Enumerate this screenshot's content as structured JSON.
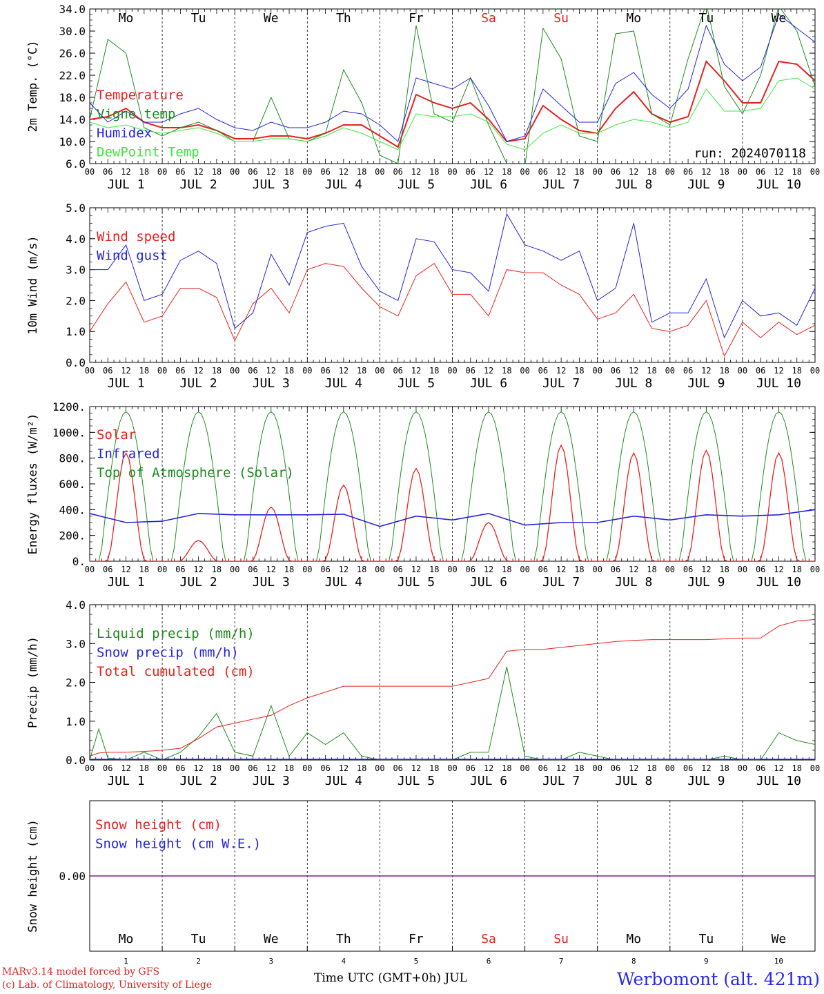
{
  "run_label": "run: 2024070118",
  "credits": {
    "line1": "MARv3.14 model forced by GFS",
    "line2": "(c) Lab. of Climatology, University of Liege"
  },
  "station": "Werbomont (alt. 421m)",
  "x_axis_title": "Time UTC (GMT+0h) JUL",
  "colors": {
    "red": "#e8201c",
    "green": "#1e8a1e",
    "blue": "#2222dd",
    "lightgreen": "#3ee83e",
    "purple": "#7a2090"
  },
  "chart_data": [
    {
      "type": "line",
      "ylabel": "2m Temp. (°C)",
      "ylim": [
        6,
        34
      ],
      "ytick_labels": [
        "6.0",
        "10.0",
        "14.0",
        "18.0",
        "22.0",
        "26.0",
        "30.0",
        "34.0"
      ],
      "day_labels": [
        "Mo",
        "Tu",
        "We",
        "Th",
        "Fr",
        "Sa",
        "Su",
        "Mo",
        "Tu",
        "We"
      ],
      "day_label_colors": [
        "#000",
        "#000",
        "#000",
        "#000",
        "#000",
        "#e8201c",
        "#e8201c",
        "#000",
        "#000",
        "#000"
      ],
      "x_hour_ticks": [
        "00",
        "06",
        "12",
        "18"
      ],
      "x_day_labels": [
        "JUL  1",
        "JUL  2",
        "JUL  3",
        "JUL  4",
        "JUL  5",
        "JUL  6",
        "JUL  7",
        "JUL  8",
        "JUL  9",
        "JUL 10"
      ],
      "legend": [
        {
          "label": "Temperature",
          "color": "#e8201c"
        },
        {
          "label": "Vigne temp",
          "color": "#1e8a1e"
        },
        {
          "label": "Humidex",
          "color": "#2222dd"
        },
        {
          "label": "DewPoint Temp",
          "color": "#3ee83e"
        }
      ],
      "x_hours": [
        0,
        6,
        12,
        18,
        24,
        30,
        36,
        42,
        48,
        54,
        60,
        66,
        72,
        78,
        84,
        90,
        96,
        102,
        108,
        114,
        120,
        126,
        132,
        138,
        144,
        150,
        156,
        162,
        168,
        174,
        180,
        186,
        192,
        198,
        204,
        210,
        216,
        222,
        228,
        234,
        240
      ],
      "series": [
        {
          "name": "Temperature",
          "color": "#e8201c",
          "width": 2,
          "values": [
            14.0,
            14.5,
            16.0,
            13.5,
            12.5,
            12.5,
            13.0,
            12.0,
            10.5,
            10.5,
            11.0,
            11.0,
            10.5,
            11.5,
            13.0,
            13.0,
            11.0,
            9.0,
            18.5,
            17.0,
            16.0,
            17.0,
            14.0,
            10.0,
            10.5,
            16.5,
            14.0,
            12.0,
            11.5,
            16.0,
            19.0,
            15.0,
            13.5,
            14.5,
            24.5,
            21.0,
            17.0,
            17.0,
            24.5,
            24.0,
            21.0
          ]
        },
        {
          "name": "Vigne temp",
          "color": "#1e8a1e",
          "width": 1,
          "values": [
            14.0,
            28.5,
            26.0,
            12.5,
            11.0,
            12.5,
            13.5,
            12.0,
            10.0,
            10.0,
            18.0,
            10.5,
            10.0,
            11.5,
            23.0,
            17.0,
            7.5,
            6.0,
            31.0,
            15.0,
            13.5,
            21.5,
            13.0,
            6.0,
            5.5,
            30.5,
            25.0,
            11.0,
            10.0,
            29.5,
            30.0,
            15.0,
            13.0,
            25.0,
            35.0,
            20.0,
            15.0,
            22.0,
            34.5,
            30.0,
            20.0
          ]
        },
        {
          "name": "Humidex",
          "color": "#2222dd",
          "width": 1,
          "values": [
            17.0,
            13.5,
            15.5,
            13.5,
            13.5,
            15.0,
            16.0,
            14.0,
            12.5,
            12.0,
            13.5,
            12.5,
            12.5,
            13.5,
            15.5,
            15.0,
            13.0,
            10.0,
            21.5,
            20.5,
            19.5,
            21.5,
            16.5,
            10.0,
            11.0,
            19.5,
            16.5,
            13.5,
            13.5,
            20.5,
            22.5,
            18.5,
            16.0,
            19.5,
            31.0,
            24.0,
            21.0,
            23.5,
            33.0,
            30.5,
            28.0
          ]
        },
        {
          "name": "DewPoint Temp",
          "color": "#3ee83e",
          "width": 1,
          "values": [
            13.5,
            12.5,
            13.0,
            12.0,
            11.5,
            12.0,
            12.5,
            11.5,
            10.0,
            10.0,
            10.5,
            10.5,
            10.0,
            11.0,
            12.5,
            11.5,
            10.0,
            8.5,
            15.0,
            14.5,
            14.5,
            15.0,
            13.5,
            9.5,
            8.5,
            11.5,
            13.0,
            11.5,
            11.5,
            13.0,
            14.0,
            13.5,
            12.5,
            13.5,
            19.5,
            15.5,
            15.5,
            16.0,
            21.0,
            21.5,
            19.5
          ]
        }
      ],
      "extra_text": "run_label"
    },
    {
      "type": "line",
      "ylabel": "10m Wind (m/s)",
      "ylim": [
        0,
        5
      ],
      "ytick_labels": [
        "0.0",
        "1.0",
        "2.0",
        "3.0",
        "4.0",
        "5.0"
      ],
      "x_hour_ticks": [
        "00",
        "06",
        "12",
        "18"
      ],
      "x_day_labels": [
        "JUL  1",
        "JUL  2",
        "JUL  3",
        "JUL  4",
        "JUL  5",
        "JUL  6",
        "JUL  7",
        "JUL  8",
        "JUL  9",
        "JUL 10"
      ],
      "legend": [
        {
          "label": "Wind speed",
          "color": "#e8201c"
        },
        {
          "label": "Wind gust",
          "color": "#2222dd"
        }
      ],
      "x_hours": [
        0,
        6,
        12,
        18,
        24,
        30,
        36,
        42,
        48,
        54,
        60,
        66,
        72,
        78,
        84,
        90,
        96,
        102,
        108,
        114,
        120,
        126,
        132,
        138,
        144,
        150,
        156,
        162,
        168,
        174,
        180,
        186,
        192,
        198,
        204,
        210,
        216,
        222,
        228,
        234,
        240
      ],
      "series": [
        {
          "name": "Wind speed",
          "color": "#e8201c",
          "width": 1,
          "values": [
            1.0,
            1.9,
            2.6,
            1.3,
            1.5,
            2.4,
            2.4,
            2.1,
            0.7,
            1.9,
            2.4,
            1.6,
            3.0,
            3.2,
            3.1,
            2.4,
            1.8,
            1.5,
            2.8,
            3.2,
            2.2,
            2.2,
            1.5,
            3.0,
            2.9,
            2.9,
            2.5,
            2.2,
            1.4,
            1.6,
            2.2,
            1.1,
            1.0,
            1.2,
            2.0,
            0.2,
            1.3,
            0.8,
            1.3,
            0.9,
            1.2
          ]
        },
        {
          "name": "Wind gust",
          "color": "#2222dd",
          "width": 1,
          "values": [
            3.0,
            3.0,
            3.8,
            2.0,
            2.2,
            3.3,
            3.6,
            3.2,
            1.1,
            1.6,
            3.5,
            2.5,
            4.2,
            4.4,
            4.5,
            3.1,
            2.3,
            2.0,
            4.0,
            3.9,
            3.0,
            2.9,
            2.3,
            4.8,
            3.8,
            3.6,
            3.3,
            3.6,
            2.0,
            2.4,
            4.5,
            1.3,
            1.6,
            1.6,
            2.7,
            0.8,
            2.0,
            1.5,
            1.6,
            1.2,
            2.4
          ]
        }
      ]
    },
    {
      "type": "line",
      "ylabel": "Energy fluxes (W/m²)",
      "ylim": [
        0,
        1200
      ],
      "ytick_labels": [
        "0.",
        "200.",
        "400.",
        "600.",
        "800.",
        "1000.",
        "1200."
      ],
      "x_hour_ticks": [
        "00",
        "06",
        "12",
        "18"
      ],
      "x_day_labels": [
        "JUL  1",
        "JUL  2",
        "JUL  3",
        "JUL  4",
        "JUL  5",
        "JUL  6",
        "JUL  7",
        "JUL  8",
        "JUL  9",
        "JUL 10"
      ],
      "legend": [
        {
          "label": "Solar",
          "color": "#e8201c"
        },
        {
          "label": "Infrared",
          "color": "#2222dd"
        },
        {
          "label": "Top of Atmosphere (Solar)",
          "color": "#1e8a1e"
        }
      ],
      "toa": {
        "peak": 1160,
        "sunrise_hour": 3.5,
        "sunset_hour": 20.5,
        "noon_hour": 12
      },
      "solar_daily_peak": [
        840,
        160,
        420,
        590,
        720,
        300,
        900,
        840,
        860,
        840
      ],
      "infrared_hourly_x": [
        0,
        12,
        24,
        36,
        48,
        60,
        72,
        84,
        96,
        108,
        120,
        132,
        144,
        156,
        168,
        180,
        192,
        204,
        216,
        228,
        240
      ],
      "infrared_values": [
        370,
        300,
        310,
        370,
        360,
        360,
        360,
        365,
        270,
        350,
        320,
        370,
        280,
        300,
        300,
        350,
        320,
        360,
        350,
        360,
        400
      ]
    },
    {
      "type": "line",
      "ylabel": "Precip (mm/h)",
      "ylim": [
        0,
        4
      ],
      "ytick_labels": [
        "0.0",
        "1.0",
        "2.0",
        "3.0",
        "4.0"
      ],
      "x_hour_ticks": [
        "00",
        "06",
        "12",
        "18"
      ],
      "x_day_labels": [
        "JUL  1",
        "JUL  2",
        "JUL  3",
        "JUL  4",
        "JUL  5",
        "JUL  6",
        "JUL  7",
        "JUL  8",
        "JUL  9",
        "JUL 10"
      ],
      "legend": [
        {
          "label": "Liquid precip (mm/h)",
          "color": "#1e8a1e"
        },
        {
          "label": "Snow precip (mm/h)",
          "color": "#2222dd"
        },
        {
          "label": "Total cumulated (cm)",
          "color": "#e8201c"
        }
      ],
      "x_hours": [
        0,
        3,
        6,
        12,
        18,
        24,
        30,
        36,
        42,
        48,
        54,
        60,
        66,
        72,
        78,
        84,
        90,
        96,
        102,
        108,
        114,
        120,
        126,
        132,
        138,
        144,
        150,
        156,
        162,
        168,
        174,
        180,
        186,
        192,
        198,
        204,
        210,
        216,
        222,
        228,
        234,
        240
      ],
      "series": [
        {
          "name": "Liquid precip (mm/h)",
          "color": "#1e8a1e",
          "width": 1,
          "values": [
            0.0,
            0.8,
            0.05,
            0.0,
            0.2,
            0.0,
            0.2,
            0.6,
            1.2,
            0.2,
            0.1,
            1.4,
            0.1,
            0.7,
            0.4,
            0.7,
            0.1,
            0.0,
            0.0,
            0.0,
            0.0,
            0.0,
            0.2,
            0.2,
            2.4,
            0.1,
            0.0,
            0.0,
            0.2,
            0.1,
            0.0,
            0.0,
            0.0,
            0.0,
            0.0,
            0.0,
            0.1,
            0.0,
            0.0,
            0.7,
            0.5,
            0.4
          ]
        },
        {
          "name": "Total cumulated (cm)",
          "color": "#e8201c",
          "width": 1,
          "values": [
            0.1,
            0.18,
            0.2,
            0.2,
            0.22,
            0.25,
            0.3,
            0.55,
            0.85,
            0.95,
            1.05,
            1.15,
            1.4,
            1.6,
            1.75,
            1.9,
            1.9,
            1.9,
            1.9,
            1.9,
            1.9,
            1.9,
            2.0,
            2.1,
            2.8,
            2.85,
            2.85,
            2.9,
            2.95,
            3.0,
            3.05,
            3.08,
            3.1,
            3.1,
            3.1,
            3.1,
            3.12,
            3.14,
            3.14,
            3.45,
            3.58,
            3.62
          ]
        }
      ]
    },
    {
      "type": "line",
      "ylabel": "Snow height (cm)",
      "ylim": [
        -1,
        1
      ],
      "ytick_labels": [
        "0.00"
      ],
      "day_labels": [
        "Mo",
        "Tu",
        "We",
        "Th",
        "Fr",
        "Sa",
        "Su",
        "Mo",
        "Tu",
        "We"
      ],
      "day_label_colors": [
        "#000",
        "#000",
        "#000",
        "#000",
        "#000",
        "#e8201c",
        "#e8201c",
        "#000",
        "#000",
        "#000"
      ],
      "day_numbers": [
        "1",
        "2",
        "3",
        "4",
        "5",
        "6",
        "7",
        "8",
        "9",
        "10"
      ],
      "legend": [
        {
          "label": "Snow height (cm)",
          "color": "#e8201c"
        },
        {
          "label": "Snow height (cm W.E.)",
          "color": "#2222dd"
        }
      ],
      "series": [
        {
          "name": "Snow height (cm)",
          "color": "#7a2090",
          "width": 1,
          "values": [
            0.0,
            0.0
          ]
        }
      ]
    }
  ]
}
